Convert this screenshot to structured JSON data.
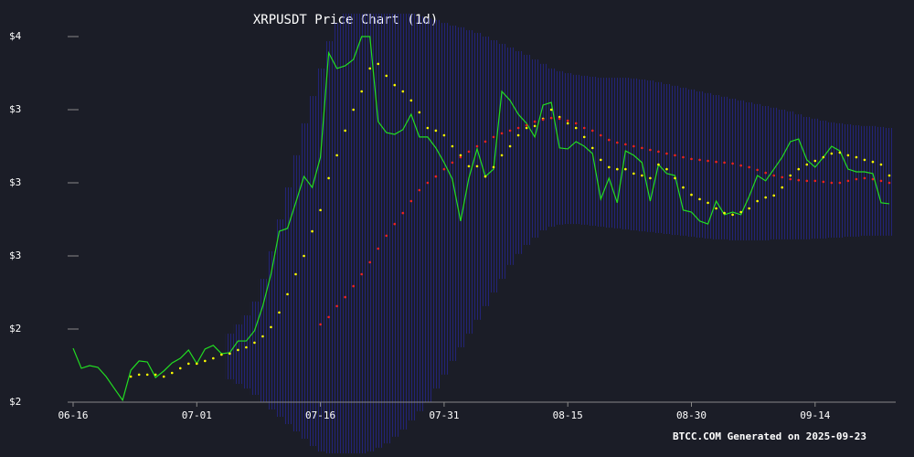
{
  "chart_data": {
    "type": "line",
    "title": "XRPUSDT Price Chart (1d)",
    "footer": "BTCC.COM Generated on 2025-09-23",
    "x": [
      "06-16",
      "06-17",
      "06-18",
      "06-19",
      "06-20",
      "06-21",
      "06-22",
      "06-23",
      "06-24",
      "06-25",
      "06-26",
      "06-27",
      "06-28",
      "06-29",
      "06-30",
      "07-01",
      "07-02",
      "07-03",
      "07-04",
      "07-05",
      "07-06",
      "07-07",
      "07-08",
      "07-09",
      "07-10",
      "07-11",
      "07-12",
      "07-13",
      "07-14",
      "07-15",
      "07-16",
      "07-17",
      "07-18",
      "07-19",
      "07-20",
      "07-21",
      "07-22",
      "07-23",
      "07-24",
      "07-25",
      "07-26",
      "07-27",
      "07-28",
      "07-29",
      "07-30",
      "07-31",
      "08-01",
      "08-02",
      "08-03",
      "08-04",
      "08-05",
      "08-06",
      "08-07",
      "08-08",
      "08-09",
      "08-10",
      "08-11",
      "08-12",
      "08-13",
      "08-14",
      "08-15",
      "08-16",
      "08-17",
      "08-18",
      "08-19",
      "08-20",
      "08-21",
      "08-22",
      "08-23",
      "08-24",
      "08-25",
      "08-26",
      "08-27",
      "08-28",
      "08-29",
      "08-30",
      "08-31",
      "09-01",
      "09-02",
      "09-03",
      "09-04",
      "09-05",
      "09-06",
      "09-07",
      "09-08",
      "09-09",
      "09-10",
      "09-11",
      "09-12",
      "09-13",
      "09-14",
      "09-15",
      "09-16",
      "09-17",
      "09-18",
      "09-19",
      "09-20",
      "09-21",
      "09-22",
      "09-23"
    ],
    "xticks": [
      "06-16",
      "07-01",
      "07-16",
      "07-31",
      "08-15",
      "08-30",
      "09-14"
    ],
    "ylim": [
      2.0,
      3.5
    ],
    "yticks": [
      {
        "value": 2.0,
        "label": "$2"
      },
      {
        "value": 2.3,
        "label": "$2"
      },
      {
        "value": 2.6,
        "label": "$3"
      },
      {
        "value": 2.9,
        "label": "$3"
      },
      {
        "value": 3.2,
        "label": "$3"
      },
      {
        "value": 3.5,
        "label": "$4"
      }
    ],
    "band": {
      "color": "#2a2ab8",
      "upper": [
        null,
        null,
        null,
        null,
        null,
        null,
        null,
        null,
        null,
        null,
        null,
        null,
        null,
        null,
        null,
        null,
        null,
        null,
        null,
        2.281,
        2.319,
        2.356,
        2.413,
        2.506,
        2.619,
        2.75,
        2.881,
        3.013,
        3.144,
        3.256,
        3.369,
        3.481,
        3.556,
        3.594,
        3.594,
        3.594,
        3.594,
        3.594,
        3.594,
        3.594,
        3.594,
        3.594,
        3.583,
        3.575,
        3.568,
        3.556,
        3.545,
        3.538,
        3.526,
        3.515,
        3.5,
        3.485,
        3.47,
        3.455,
        3.44,
        3.425,
        3.406,
        3.388,
        3.369,
        3.358,
        3.35,
        3.343,
        3.339,
        3.335,
        3.331,
        3.331,
        3.331,
        3.331,
        3.328,
        3.324,
        3.32,
        3.313,
        3.305,
        3.298,
        3.29,
        3.283,
        3.275,
        3.268,
        3.26,
        3.253,
        3.245,
        3.238,
        3.23,
        3.223,
        3.215,
        3.208,
        3.2,
        3.193,
        3.181,
        3.17,
        3.163,
        3.155,
        3.148,
        3.144,
        3.14,
        3.136,
        3.133,
        3.133,
        3.129,
        3.125
      ],
      "lower": [
        null,
        null,
        null,
        null,
        null,
        null,
        null,
        null,
        null,
        null,
        null,
        null,
        null,
        null,
        null,
        null,
        null,
        null,
        null,
        2.094,
        2.075,
        2.056,
        2.03,
        2.0,
        1.97,
        1.94,
        1.91,
        1.88,
        1.85,
        1.82,
        1.798,
        1.79,
        1.79,
        1.79,
        1.79,
        1.79,
        1.798,
        1.813,
        1.831,
        1.858,
        1.888,
        1.925,
        1.963,
        2.0,
        2.056,
        2.113,
        2.169,
        2.225,
        2.281,
        2.338,
        2.394,
        2.45,
        2.506,
        2.563,
        2.608,
        2.645,
        2.675,
        2.705,
        2.72,
        2.728,
        2.731,
        2.731,
        2.728,
        2.724,
        2.72,
        2.716,
        2.713,
        2.709,
        2.705,
        2.701,
        2.698,
        2.694,
        2.69,
        2.686,
        2.683,
        2.679,
        2.675,
        2.671,
        2.668,
        2.668,
        2.664,
        2.664,
        2.664,
        2.664,
        2.664,
        2.668,
        2.668,
        2.668,
        2.668,
        2.668,
        2.671,
        2.671,
        2.675,
        2.675,
        2.679,
        2.679,
        2.683,
        2.683,
        2.683,
        2.683
      ]
    },
    "series": [
      {
        "color": "#22dd22",
        "style": "line",
        "values": [
          2.221,
          2.139,
          2.15,
          2.143,
          2.105,
          2.056,
          2.008,
          2.131,
          2.169,
          2.165,
          2.101,
          2.128,
          2.161,
          2.18,
          2.214,
          2.158,
          2.218,
          2.233,
          2.199,
          2.203,
          2.251,
          2.251,
          2.293,
          2.394,
          2.525,
          2.701,
          2.713,
          2.818,
          2.926,
          2.881,
          3.005,
          3.433,
          3.369,
          3.38,
          3.406,
          3.5,
          3.5,
          3.151,
          3.106,
          3.099,
          3.118,
          3.181,
          3.088,
          3.088,
          3.043,
          2.983,
          2.915,
          2.743,
          2.919,
          3.039,
          2.926,
          2.956,
          3.275,
          3.238,
          3.181,
          3.144,
          3.088,
          3.219,
          3.23,
          3.043,
          3.039,
          3.069,
          3.05,
          3.02,
          2.833,
          2.919,
          2.818,
          3.031,
          3.013,
          2.983,
          2.825,
          2.975,
          2.938,
          2.93,
          2.788,
          2.78,
          2.743,
          2.731,
          2.825,
          2.769,
          2.78,
          2.769,
          2.844,
          2.93,
          2.908,
          2.956,
          3.005,
          3.069,
          3.08,
          2.994,
          2.964,
          3.005,
          3.05,
          3.031,
          2.956,
          2.945,
          2.945,
          2.938,
          2.818,
          2.814
        ]
      },
      {
        "color": "#ffff00",
        "style": "dots",
        "values": [
          null,
          null,
          null,
          null,
          null,
          null,
          null,
          2.105,
          2.113,
          2.113,
          2.113,
          2.105,
          2.12,
          2.139,
          2.158,
          2.158,
          2.169,
          2.18,
          2.195,
          2.199,
          2.214,
          2.225,
          2.244,
          2.27,
          2.308,
          2.368,
          2.443,
          2.525,
          2.6,
          2.701,
          2.788,
          2.919,
          3.013,
          3.114,
          3.2,
          3.275,
          3.369,
          3.388,
          3.339,
          3.301,
          3.275,
          3.238,
          3.189,
          3.125,
          3.114,
          3.095,
          3.05,
          3.013,
          2.968,
          2.968,
          2.926,
          2.964,
          3.013,
          3.05,
          3.095,
          3.125,
          3.133,
          3.163,
          3.2,
          3.17,
          3.144,
          3.125,
          3.088,
          3.043,
          2.994,
          2.964,
          2.956,
          2.956,
          2.938,
          2.93,
          2.919,
          2.975,
          2.956,
          2.919,
          2.881,
          2.851,
          2.833,
          2.818,
          2.795,
          2.776,
          2.769,
          2.78,
          2.795,
          2.825,
          2.84,
          2.848,
          2.881,
          2.93,
          2.956,
          2.975,
          2.99,
          3.005,
          3.02,
          3.024,
          3.013,
          3.005,
          2.994,
          2.986,
          2.975,
          2.93
        ]
      },
      {
        "color": "#ee2222",
        "style": "dots",
        "values": [
          null,
          null,
          null,
          null,
          null,
          null,
          null,
          null,
          null,
          null,
          null,
          null,
          null,
          null,
          null,
          null,
          null,
          null,
          null,
          null,
          null,
          null,
          null,
          null,
          null,
          null,
          null,
          null,
          null,
          null,
          2.319,
          2.349,
          2.394,
          2.431,
          2.476,
          2.525,
          2.574,
          2.63,
          2.683,
          2.731,
          2.776,
          2.825,
          2.87,
          2.9,
          2.926,
          2.956,
          2.983,
          3.005,
          3.028,
          3.05,
          3.069,
          3.088,
          3.103,
          3.114,
          3.125,
          3.136,
          3.151,
          3.159,
          3.166,
          3.163,
          3.155,
          3.144,
          3.125,
          3.114,
          3.095,
          3.076,
          3.065,
          3.058,
          3.05,
          3.043,
          3.035,
          3.028,
          3.02,
          3.013,
          3.005,
          2.998,
          2.994,
          2.99,
          2.986,
          2.983,
          2.979,
          2.971,
          2.964,
          2.953,
          2.941,
          2.93,
          2.923,
          2.915,
          2.911,
          2.908,
          2.908,
          2.904,
          2.9,
          2.9,
          2.908,
          2.915,
          2.919,
          2.915,
          2.908,
          2.9
        ]
      }
    ]
  }
}
